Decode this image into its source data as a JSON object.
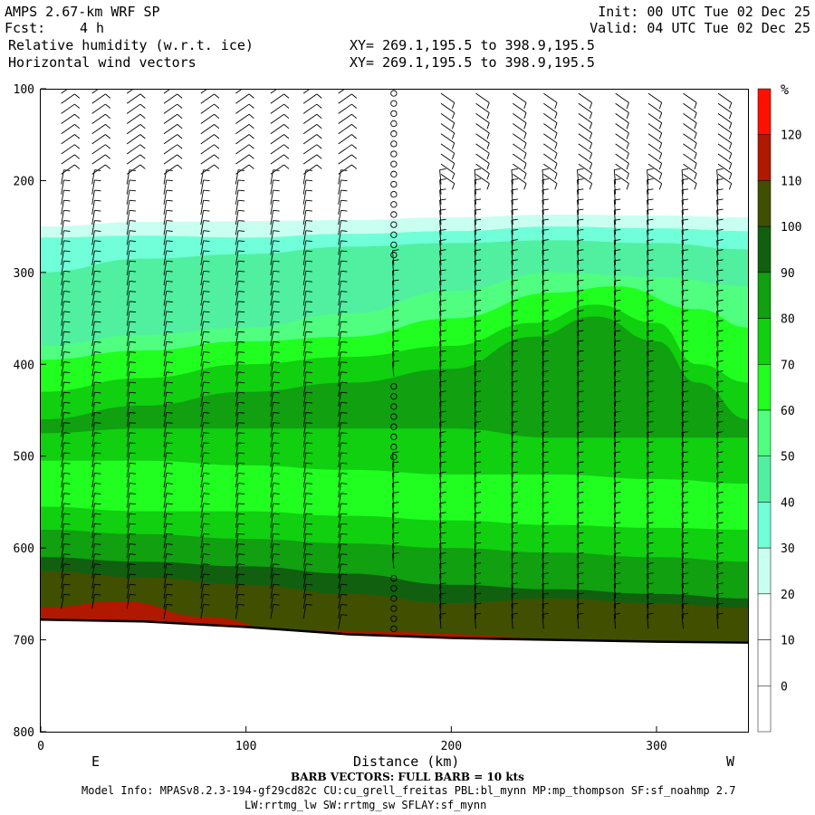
{
  "header": {
    "model": "AMPS 2.67-km WRF SP",
    "fcst_label": "Fcst:",
    "fcst_value": "4 h",
    "field1": "Relative humidity (w.r.t. ice)",
    "field2": "Horizontal wind vectors",
    "init": "Init: 00 UTC Tue 02 Dec 25",
    "valid": "Valid: 04 UTC Tue 02 Dec 25",
    "xy1": "XY= 269.1,195.5 to 398.9,195.5",
    "xy2": "XY= 269.1,195.5 to 398.9,195.5"
  },
  "footer": {
    "barb_note": "BARB VECTORS:  FULL BARB = 10 kts",
    "model_info": "Model Info: MPASv8.2.3-194-gf29cd82c CU:cu_grell_freitas PBL:bl_mynn MP:mp_thompson SF:sf_noahmp 2.7",
    "model_info2": "LW:rrtmg_lw SW:rrtmg_sw SFLAY:sf_mynn"
  },
  "chart_data": {
    "type": "contour-cross-section",
    "xlabel": "Distance (km)",
    "x_left_label": "E",
    "x_right_label": "W",
    "xlim": [
      0,
      345
    ],
    "ylim": [
      100,
      800
    ],
    "y_inverted": true,
    "x_ticks": [
      0,
      100,
      200,
      300
    ],
    "y_ticks": [
      100,
      200,
      300,
      400,
      500,
      600,
      700,
      800
    ],
    "colorbar": {
      "unit": "%",
      "levels": [
        0,
        10,
        20,
        30,
        40,
        50,
        60,
        70,
        80,
        90,
        100,
        110,
        120
      ],
      "colors": [
        "#ffffff",
        "#ffffff",
        "#ffffff",
        "#c8fff0",
        "#70ffd8",
        "#50f0a0",
        "#50ff80",
        "#20ff20",
        "#10d010",
        "#10a010",
        "#106010",
        "#405000",
        "#b01800",
        "#ff1000"
      ]
    },
    "layers": [
      {
        "rh": 30,
        "color": "#c8fff0",
        "top": [
          [
            0,
            250
          ],
          [
            50,
            245
          ],
          [
            100,
            244
          ],
          [
            150,
            243
          ],
          [
            200,
            240
          ],
          [
            250,
            237
          ],
          [
            300,
            238
          ],
          [
            345,
            240
          ]
        ]
      },
      {
        "rh": 40,
        "color": "#70ffd8",
        "top": [
          [
            0,
            262
          ],
          [
            50,
            260
          ],
          [
            100,
            262
          ],
          [
            150,
            258
          ],
          [
            200,
            255
          ],
          [
            250,
            250
          ],
          [
            300,
            252
          ],
          [
            345,
            255
          ]
        ]
      },
      {
        "rh": 50,
        "color": "#50f0a0",
        "top": [
          [
            0,
            300
          ],
          [
            50,
            285
          ],
          [
            100,
            280
          ],
          [
            150,
            272
          ],
          [
            200,
            268
          ],
          [
            250,
            265
          ],
          [
            300,
            268
          ],
          [
            345,
            275
          ]
        ]
      },
      {
        "rh": 60,
        "color": "#50ff80",
        "top": [
          [
            0,
            380
          ],
          [
            50,
            368
          ],
          [
            100,
            360
          ],
          [
            150,
            345
          ],
          [
            200,
            320
          ],
          [
            250,
            300
          ],
          [
            300,
            305
          ],
          [
            345,
            315
          ]
        ]
      },
      {
        "rh": 70,
        "color": "#20ff20",
        "top": [
          [
            0,
            395
          ],
          [
            50,
            385
          ],
          [
            100,
            375
          ],
          [
            150,
            370
          ],
          [
            200,
            350
          ],
          [
            250,
            322
          ],
          [
            280,
            315
          ],
          [
            320,
            340
          ],
          [
            345,
            360
          ]
        ]
      },
      {
        "rh": 80,
        "color": "#10d010",
        "top": [
          [
            0,
            430
          ],
          [
            50,
            415
          ],
          [
            100,
            400
          ],
          [
            150,
            392
          ],
          [
            200,
            380
          ],
          [
            240,
            355
          ],
          [
            270,
            335
          ],
          [
            300,
            355
          ],
          [
            320,
            400
          ],
          [
            345,
            420
          ]
        ]
      },
      {
        "rh": 90,
        "color": "#10a010",
        "top": [
          [
            0,
            460
          ],
          [
            50,
            445
          ],
          [
            100,
            430
          ],
          [
            150,
            420
          ],
          [
            200,
            405
          ],
          [
            240,
            370
          ],
          [
            270,
            348
          ],
          [
            300,
            375
          ],
          [
            320,
            420
          ],
          [
            345,
            460
          ]
        ]
      },
      {
        "rh": 80,
        "color": "#10d010",
        "top": [
          [
            0,
            475
          ],
          [
            50,
            470
          ],
          [
            100,
            470
          ],
          [
            150,
            470
          ],
          [
            200,
            470
          ],
          [
            250,
            480
          ],
          [
            300,
            480
          ],
          [
            345,
            480
          ]
        ]
      },
      {
        "rh": 70,
        "color": "#20ff20",
        "top": [
          [
            0,
            505
          ],
          [
            50,
            505
          ],
          [
            100,
            510
          ],
          [
            150,
            515
          ],
          [
            200,
            520
          ],
          [
            250,
            520
          ],
          [
            300,
            525
          ],
          [
            345,
            530
          ]
        ]
      },
      {
        "rh": 80,
        "color": "#10d010",
        "top": [
          [
            0,
            555
          ],
          [
            50,
            560
          ],
          [
            100,
            560
          ],
          [
            150,
            565
          ],
          [
            200,
            570
          ],
          [
            250,
            575
          ],
          [
            300,
            578
          ],
          [
            345,
            580
          ]
        ]
      },
      {
        "rh": 90,
        "color": "#10a010",
        "top": [
          [
            0,
            580
          ],
          [
            50,
            585
          ],
          [
            100,
            590
          ],
          [
            150,
            595
          ],
          [
            200,
            600
          ],
          [
            250,
            605
          ],
          [
            300,
            610
          ],
          [
            345,
            615
          ]
        ]
      },
      {
        "rh": 100,
        "color": "#106010",
        "top": [
          [
            0,
            610
          ],
          [
            50,
            615
          ],
          [
            100,
            620
          ],
          [
            150,
            628
          ],
          [
            200,
            640
          ],
          [
            250,
            645
          ],
          [
            300,
            650
          ],
          [
            345,
            655
          ]
        ]
      },
      {
        "rh": 110,
        "color": "#405000",
        "top": [
          [
            0,
            625
          ],
          [
            50,
            632
          ],
          [
            100,
            640
          ],
          [
            150,
            650
          ],
          [
            200,
            660
          ],
          [
            250,
            655
          ],
          [
            300,
            660
          ],
          [
            345,
            665
          ]
        ]
      },
      {
        "rh": 120,
        "color": "#b01800",
        "top": [
          [
            0,
            665
          ],
          [
            40,
            658
          ],
          [
            80,
            675
          ],
          [
            120,
            690
          ],
          [
            345,
            705
          ]
        ]
      }
    ],
    "terrain": [
      [
        0,
        678
      ],
      [
        50,
        680
      ],
      [
        100,
        686
      ],
      [
        150,
        694
      ],
      [
        200,
        698
      ],
      [
        250,
        700
      ],
      [
        300,
        702
      ],
      [
        345,
        703
      ]
    ],
    "barbs": {
      "x": [
        10,
        25,
        42,
        60,
        78,
        95,
        112,
        128,
        145,
        172,
        195,
        212,
        230,
        245,
        262,
        280,
        296,
        313,
        330
      ],
      "calm_x": 172
    }
  }
}
